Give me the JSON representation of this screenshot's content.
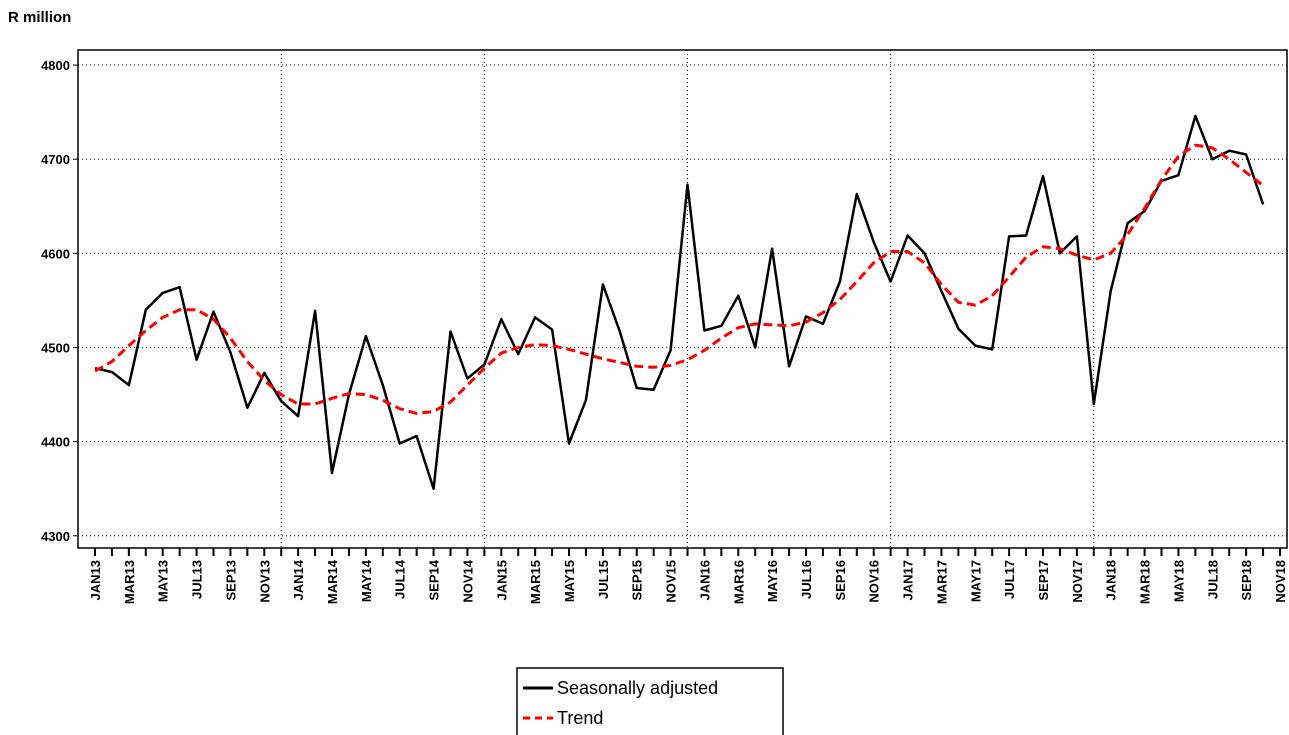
{
  "chart_data": {
    "type": "line",
    "title": "R million",
    "categories": [
      "JAN13",
      null,
      "MAR13",
      null,
      "MAY13",
      null,
      "JUL13",
      null,
      "SEP13",
      null,
      "NOV13",
      null,
      "JAN14",
      null,
      "MAR14",
      null,
      "MAY14",
      null,
      "JUL14",
      null,
      "SEP14",
      null,
      "NOV14",
      null,
      "JAN15",
      null,
      "MAR15",
      null,
      "MAY15",
      null,
      "JUL15",
      null,
      "SEP15",
      null,
      "NOV15",
      null,
      "JAN16",
      null,
      "MAR16",
      null,
      "MAY16",
      null,
      "JUL16",
      null,
      "SEP16",
      null,
      "NOV16",
      null,
      "JAN17",
      null,
      "MAR17",
      null,
      "MAY17",
      null,
      "JUL17",
      null,
      "SEP17",
      null,
      "NOV17",
      null,
      "JAN18",
      null,
      "MAR18",
      null,
      "MAY18",
      null,
      "JUL18",
      null,
      "SEP18",
      null,
      "NOV18"
    ],
    "series": [
      {
        "name": "Seasonally adjusted",
        "color": "#000000",
        "linestyle": "solid",
        "values": [
          4478,
          4474,
          4460,
          4540,
          4558,
          4564,
          4487,
          4538,
          4495,
          4436,
          4473,
          4443,
          4427,
          4539,
          4367,
          4450,
          4512,
          4460,
          4398,
          4406,
          4350,
          4517,
          4467,
          4482,
          4530,
          4493,
          4532,
          4519,
          4398,
          4444,
          4567,
          4517,
          4457,
          4455,
          4497,
          4673,
          4518,
          4523,
          4555,
          4500,
          4605,
          4480,
          4533,
          4525,
          4570,
          4663,
          4612,
          4570,
          4619,
          4600,
          4560,
          4520,
          4502,
          4498,
          4618,
          4619,
          4682,
          4600,
          4618,
          4440,
          4560,
          4632,
          4645,
          4677,
          4683,
          4746,
          4700,
          4709,
          4705,
          4652,
          null
        ]
      },
      {
        "name": "Trend",
        "color": "#ff0000",
        "linestyle": "dashed",
        "values": [
          4475,
          4485,
          4502,
          4518,
          4532,
          4540,
          4540,
          4530,
          4510,
          4485,
          4465,
          4450,
          4440,
          4440,
          4446,
          4451,
          4450,
          4444,
          4435,
          4430,
          4432,
          4442,
          4460,
          4478,
          4494,
          4500,
          4503,
          4502,
          4498,
          4493,
          4488,
          4484,
          4480,
          4479,
          4481,
          4487,
          4497,
          4510,
          4521,
          4525,
          4524,
          4523,
          4527,
          4537,
          4551,
          4570,
          4590,
          4602,
          4602,
          4590,
          4567,
          4548,
          4545,
          4555,
          4575,
          4596,
          4607,
          4605,
          4598,
          4593,
          4600,
          4620,
          4648,
          4678,
          4703,
          4715,
          4712,
          4700,
          4686,
          4672,
          null
        ]
      }
    ],
    "ylim": [
      4287,
      4816
    ],
    "yticks": [
      4300,
      4400,
      4500,
      4600,
      4700,
      4800
    ],
    "grid": true,
    "legend": "bottom-center"
  }
}
